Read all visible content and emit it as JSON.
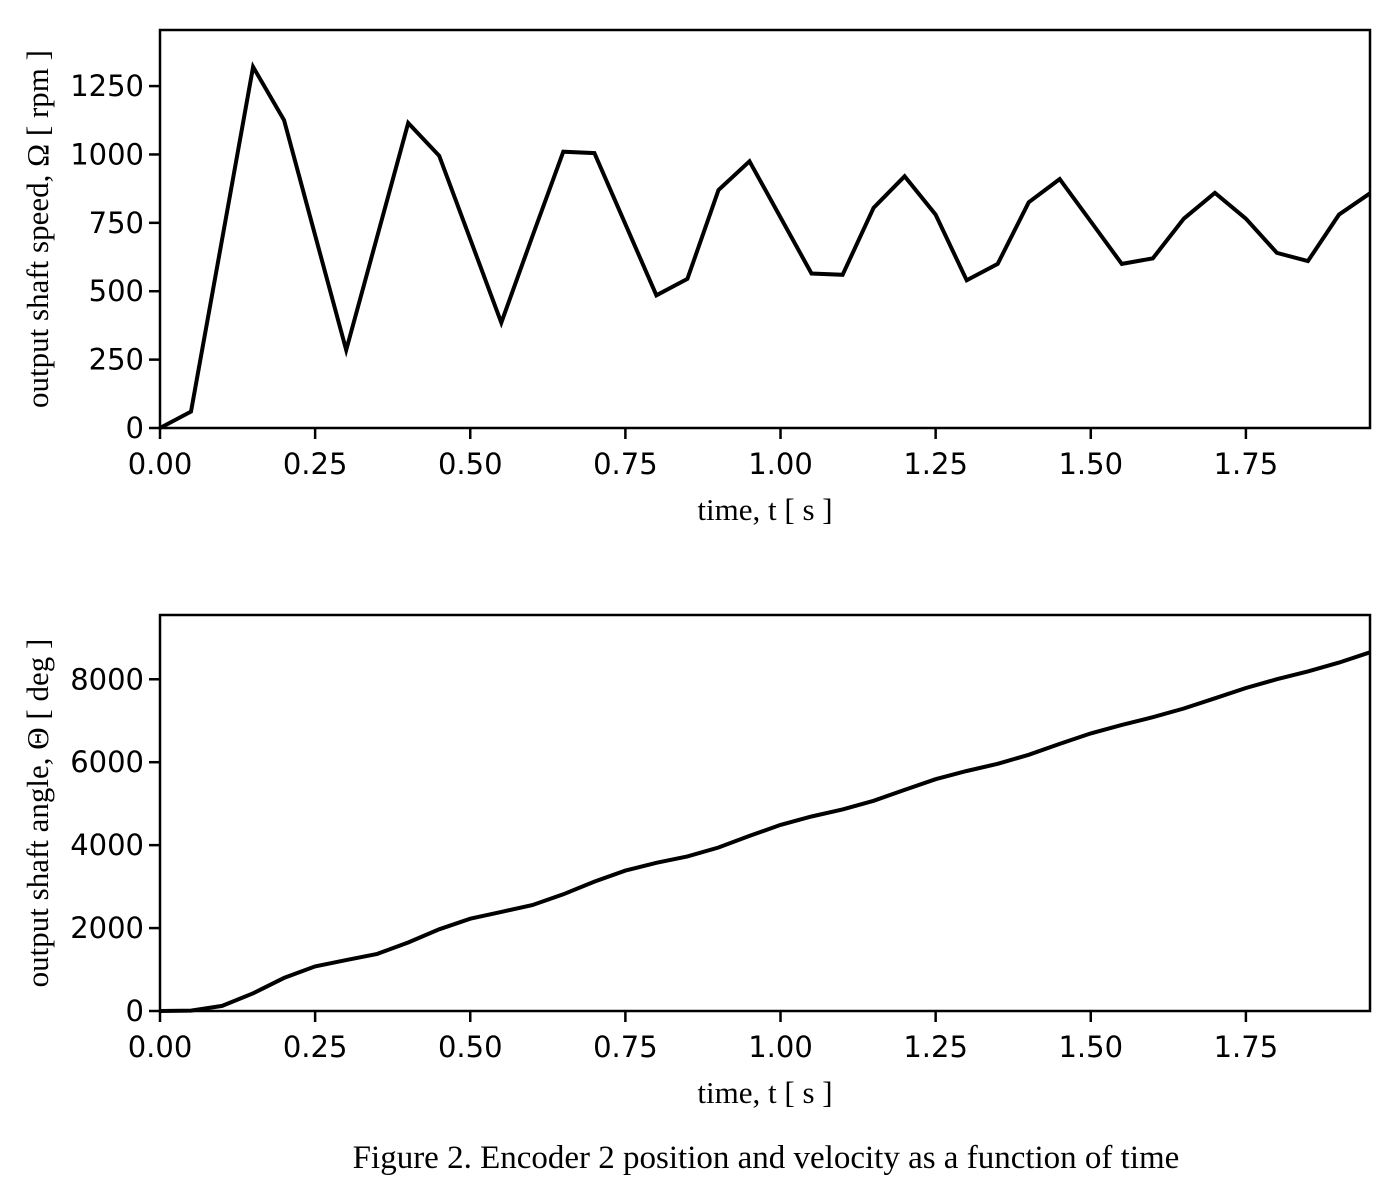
{
  "figure": {
    "caption": "Figure 2. Encoder 2 position and velocity as a function of time",
    "background_color": "#ffffff",
    "line_color": "#000000"
  },
  "chart_data": [
    {
      "id": "speed",
      "type": "line",
      "title": "",
      "xlabel": "time, t [ s ]",
      "ylabel": "output shaft speed, Ω [ rpm ]",
      "xlim": [
        0,
        1.95
      ],
      "ylim": [
        0,
        1455
      ],
      "grid": false,
      "legend": "none",
      "xtick_values": [
        0,
        0.25,
        0.5,
        0.75,
        1.0,
        1.25,
        1.5,
        1.75
      ],
      "xtick_labels": [
        "0.00",
        "0.25",
        "0.50",
        "0.75",
        "1.00",
        "1.25",
        "1.50",
        "1.75"
      ],
      "ytick_values": [
        0,
        250,
        500,
        750,
        1000,
        1250
      ],
      "ytick_labels": [
        "0",
        "250",
        "500",
        "750",
        "1000",
        "1250"
      ],
      "x": [
        0.0,
        0.05,
        0.1,
        0.15,
        0.2,
        0.25,
        0.3,
        0.35,
        0.4,
        0.45,
        0.5,
        0.55,
        0.6,
        0.65,
        0.7,
        0.75,
        0.8,
        0.85,
        0.9,
        0.95,
        1.0,
        1.05,
        1.1,
        1.15,
        1.2,
        1.25,
        1.3,
        1.35,
        1.4,
        1.45,
        1.5,
        1.55,
        1.6,
        1.65,
        1.7,
        1.75,
        1.8,
        1.85,
        1.9,
        1.95
      ],
      "y": [
        0,
        60,
        690,
        1320,
        1125,
        705,
        285,
        700,
        1115,
        995,
        690,
        385,
        700,
        1010,
        1005,
        745,
        485,
        545,
        870,
        975,
        770,
        565,
        560,
        805,
        920,
        780,
        540,
        600,
        825,
        910,
        755,
        600,
        620,
        765,
        860,
        765,
        640,
        610,
        780,
        858
      ]
    },
    {
      "id": "angle",
      "type": "line",
      "title": "",
      "xlabel": "time, t [ s ]",
      "ylabel": "output shaft angle, Θ [ deg ]",
      "xlim": [
        0,
        1.95
      ],
      "ylim": [
        0,
        9550
      ],
      "grid": false,
      "legend": "none",
      "xtick_values": [
        0,
        0.25,
        0.5,
        0.75,
        1.0,
        1.25,
        1.5,
        1.75
      ],
      "xtick_labels": [
        "0.00",
        "0.25",
        "0.50",
        "0.75",
        "1.00",
        "1.25",
        "1.50",
        "1.75"
      ],
      "ytick_values": [
        0,
        2000,
        4000,
        6000,
        8000
      ],
      "ytick_labels": [
        "0",
        "2000",
        "4000",
        "6000",
        "8000"
      ],
      "x": [
        0.0,
        0.05,
        0.1,
        0.15,
        0.2,
        0.25,
        0.3,
        0.35,
        0.4,
        0.45,
        0.5,
        0.55,
        0.6,
        0.65,
        0.7,
        0.75,
        0.8,
        0.85,
        0.9,
        0.95,
        1.0,
        1.05,
        1.1,
        1.15,
        1.2,
        1.25,
        1.3,
        1.35,
        1.4,
        1.45,
        1.5,
        1.55,
        1.6,
        1.65,
        1.7,
        1.75,
        1.8,
        1.85,
        1.9,
        1.95
      ],
      "y": [
        0,
        9,
        123,
        428,
        799,
        1076,
        1227,
        1377,
        1652,
        1971,
        2227,
        2390,
        2555,
        2815,
        3120,
        3385,
        3573,
        3728,
        3943,
        4223,
        4488,
        4690,
        4861,
        5069,
        5331,
        5589,
        5789,
        5962,
        6178,
        6441,
        6694,
        6899,
        7085,
        7295,
        7542,
        7789,
        8001,
        8191,
        8402,
        8650
      ]
    }
  ]
}
